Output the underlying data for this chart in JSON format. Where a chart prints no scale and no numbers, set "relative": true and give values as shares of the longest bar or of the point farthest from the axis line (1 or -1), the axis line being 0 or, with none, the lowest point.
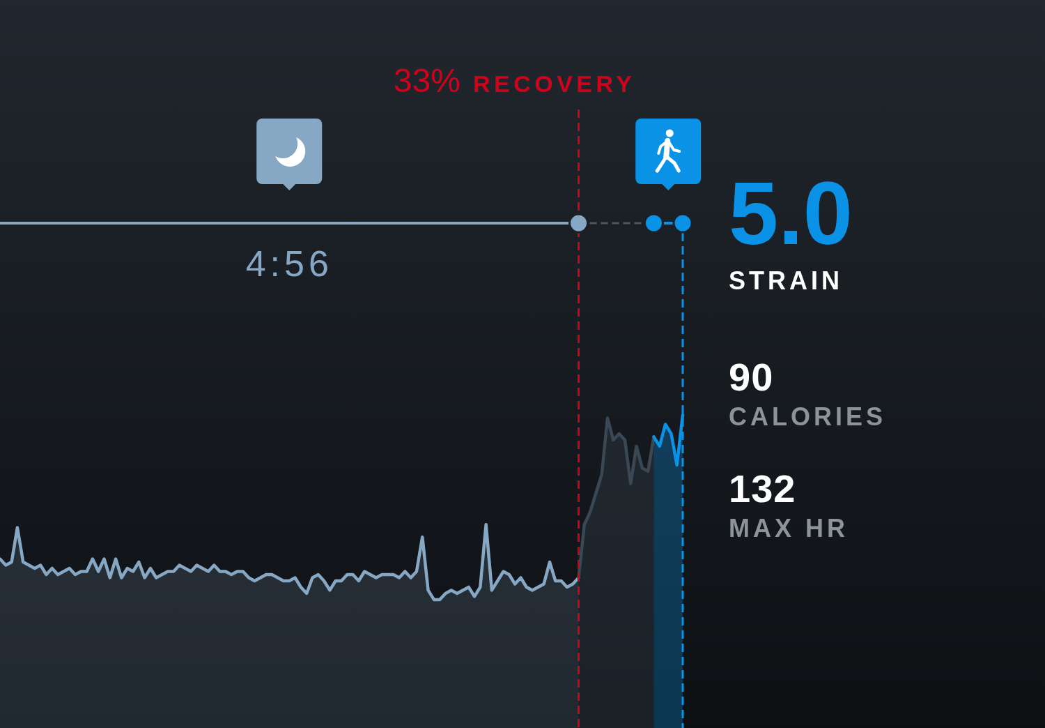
{
  "chart_data": [
    {
      "type": "area",
      "relative": true,
      "categories": [
        null,
        null,
        null,
        null,
        null,
        null,
        null,
        null,
        null,
        null,
        null,
        null,
        null,
        null,
        null,
        null,
        null,
        null,
        null,
        null,
        null,
        null,
        null,
        null,
        null,
        null,
        null,
        null,
        null,
        null,
        null,
        null,
        null,
        null,
        null,
        null,
        null,
        null,
        null,
        null,
        null,
        null,
        null,
        null,
        null,
        null,
        null,
        null,
        null,
        null,
        null,
        null,
        null,
        null,
        null,
        null,
        null,
        null,
        null,
        null,
        null,
        null,
        null,
        null,
        null,
        null,
        null,
        null,
        null,
        null,
        null,
        null,
        null,
        null,
        null,
        null,
        null,
        null,
        null,
        null,
        null,
        null,
        null,
        null,
        null,
        null,
        null,
        null,
        null,
        null,
        null,
        null,
        null,
        null,
        null,
        null,
        null,
        null,
        null,
        null,
        null,
        null,
        null,
        null,
        null,
        null,
        null,
        null,
        null,
        null,
        null,
        null,
        null,
        null,
        null,
        null,
        null,
        null,
        null
      ],
      "series": [
        {
          "color": "#87a8c4",
          "values": [
            0.54,
            0.52,
            0.53,
            0.64,
            0.53,
            0.52,
            0.51,
            0.52,
            0.49,
            0.51,
            0.49,
            0.5,
            0.51,
            0.49,
            0.5,
            0.5,
            0.54,
            0.5,
            0.54,
            0.48,
            0.54,
            0.48,
            0.51,
            0.5,
            0.53,
            0.48,
            0.51,
            0.48,
            0.49,
            0.5,
            0.5,
            0.52,
            0.51,
            0.5,
            0.52,
            0.51,
            0.5,
            0.52,
            0.5,
            0.5,
            0.49,
            0.5,
            0.5,
            0.48,
            0.47,
            0.48,
            0.49,
            0.49,
            0.48,
            0.47,
            0.47,
            0.48,
            0.45,
            0.43,
            0.48,
            0.49,
            0.47,
            0.44,
            0.47,
            0.47,
            0.49,
            0.49,
            0.47,
            0.5,
            0.49,
            0.48,
            0.49,
            0.49,
            0.49,
            0.48,
            0.5,
            0.48,
            0.5,
            0.61,
            0.44,
            0.41,
            0.41,
            0.43,
            0.44,
            0.43,
            0.44,
            0.45,
            0.42,
            0.45,
            0.65,
            0.44,
            0.47,
            0.5,
            0.49,
            0.46,
            0.48,
            0.45,
            0.44,
            0.45,
            0.46,
            0.53,
            0.47,
            0.47,
            0.45,
            0.46,
            0.48,
            null,
            null,
            null,
            null,
            null,
            null,
            null,
            null,
            null,
            null,
            null,
            null,
            null,
            null,
            null,
            null,
            null,
            null
          ]
        },
        {
          "color": "#3a4855",
          "values": [
            null,
            null,
            null,
            null,
            null,
            null,
            null,
            null,
            null,
            null,
            null,
            null,
            null,
            null,
            null,
            null,
            null,
            null,
            null,
            null,
            null,
            null,
            null,
            null,
            null,
            null,
            null,
            null,
            null,
            null,
            null,
            null,
            null,
            null,
            null,
            null,
            null,
            null,
            null,
            null,
            null,
            null,
            null,
            null,
            null,
            null,
            null,
            null,
            null,
            null,
            null,
            null,
            null,
            null,
            null,
            null,
            null,
            null,
            null,
            null,
            null,
            null,
            null,
            null,
            null,
            null,
            null,
            null,
            null,
            null,
            null,
            null,
            null,
            null,
            null,
            null,
            null,
            null,
            null,
            null,
            null,
            null,
            null,
            null,
            null,
            null,
            null,
            null,
            null,
            null,
            null,
            null,
            null,
            null,
            null,
            null,
            null,
            null,
            null,
            null,
            0.48,
            0.65,
            0.69,
            0.75,
            0.81,
            0.99,
            0.92,
            0.94,
            0.92,
            0.78,
            0.9,
            0.83,
            0.82,
            0.93,
            null,
            null,
            null,
            null,
            null
          ]
        },
        {
          "color": "#0a93e6",
          "values": [
            null,
            null,
            null,
            null,
            null,
            null,
            null,
            null,
            null,
            null,
            null,
            null,
            null,
            null,
            null,
            null,
            null,
            null,
            null,
            null,
            null,
            null,
            null,
            null,
            null,
            null,
            null,
            null,
            null,
            null,
            null,
            null,
            null,
            null,
            null,
            null,
            null,
            null,
            null,
            null,
            null,
            null,
            null,
            null,
            null,
            null,
            null,
            null,
            null,
            null,
            null,
            null,
            null,
            null,
            null,
            null,
            null,
            null,
            null,
            null,
            null,
            null,
            null,
            null,
            null,
            null,
            null,
            null,
            null,
            null,
            null,
            null,
            null,
            null,
            null,
            null,
            null,
            null,
            null,
            null,
            null,
            null,
            null,
            null,
            null,
            null,
            null,
            null,
            null,
            null,
            null,
            null,
            null,
            null,
            null,
            null,
            null,
            null,
            null,
            null,
            null,
            null,
            null,
            null,
            null,
            null,
            null,
            null,
            null,
            null,
            null,
            null,
            null,
            0.93,
            0.9,
            0.97,
            0.94,
            0.84,
            1
          ]
        }
      ],
      "annotations": [
        "33% RECOVERY",
        "4:56"
      ]
    },
    {
      "type": "other",
      "annotations": [
        "5.0",
        "STRAIN",
        "90",
        "CALORIES",
        "132",
        "MAX HR"
      ]
    }
  ]
}
